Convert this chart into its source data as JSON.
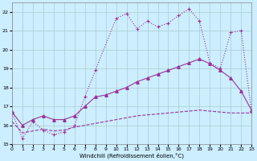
{
  "xlabel": "Windchill (Refroidissement éolien,°C)",
  "background_color": "#cceeff",
  "grid_color": "#aacccc",
  "line_color": "#993399",
  "xlim": [
    0,
    23
  ],
  "ylim": [
    15,
    22.5
  ],
  "xticks": [
    0,
    1,
    2,
    3,
    4,
    5,
    6,
    7,
    8,
    9,
    10,
    11,
    12,
    13,
    14,
    15,
    16,
    17,
    18,
    19,
    20,
    21,
    22,
    23
  ],
  "yticks": [
    15,
    16,
    17,
    18,
    19,
    20,
    21,
    22
  ],
  "curve1_x": [
    0,
    1,
    2,
    3,
    4,
    5,
    6,
    7,
    8,
    10,
    11,
    12,
    13,
    14,
    15,
    16,
    17,
    18,
    19,
    20,
    21,
    22,
    23
  ],
  "curve1_y": [
    16.7,
    15.3,
    16.2,
    15.75,
    15.5,
    15.65,
    16.0,
    17.5,
    18.9,
    21.65,
    21.9,
    21.1,
    21.5,
    21.2,
    21.4,
    21.8,
    22.15,
    21.5,
    19.3,
    19.0,
    20.9,
    21.0,
    16.7
  ],
  "curve2_x": [
    0,
    1,
    2,
    3,
    4,
    5,
    6,
    7,
    8,
    9,
    10,
    11,
    12,
    13,
    14,
    15,
    16,
    17,
    18,
    19,
    20,
    21,
    22,
    23
  ],
  "curve2_y": [
    16.7,
    16.0,
    16.3,
    16.5,
    16.3,
    16.3,
    16.5,
    17.0,
    17.5,
    17.6,
    17.8,
    18.0,
    18.3,
    18.5,
    18.7,
    18.9,
    19.1,
    19.3,
    19.5,
    19.25,
    18.9,
    18.5,
    17.8,
    16.8
  ],
  "curve3_x": [
    0,
    1,
    2,
    3,
    4,
    5,
    6,
    7,
    8,
    9,
    10,
    11,
    12,
    13,
    14,
    15,
    16,
    17,
    18,
    19,
    20,
    21,
    22,
    23
  ],
  "curve3_y": [
    16.2,
    15.6,
    15.7,
    15.8,
    15.7,
    15.75,
    15.9,
    16.0,
    16.1,
    16.2,
    16.3,
    16.4,
    16.5,
    16.55,
    16.6,
    16.65,
    16.7,
    16.75,
    16.8,
    16.75,
    16.7,
    16.65,
    16.65,
    16.65
  ]
}
